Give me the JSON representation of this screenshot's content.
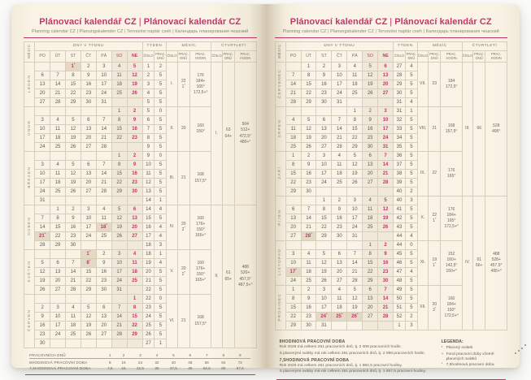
{
  "colors": {
    "accent": "#c5356a",
    "paper": "#f9f4e7",
    "grid_line": "#d8cdb8",
    "text": "#5f5950",
    "weekend_shade": "#f0e8d8",
    "holiday_shade": "#e3d9c5"
  },
  "header": {
    "title_left": "Plánovací kalendář CZ",
    "title_divider": "|",
    "title_right": "Plánovací kalendár CZ",
    "subtitle": "Planning calendar CZ | Planungskalender CZ | Tervezési naptár cseh | Календарь планирования чешский"
  },
  "table": {
    "col_month_rot": "MĚSÍC",
    "group_days": "DNY V TÝDNU",
    "day_names": [
      "PO",
      "ÚT",
      "ST",
      "ČT",
      "PÁ",
      "SO",
      "NE"
    ],
    "group_week": "TÝDEN",
    "group_month": "MĚSÍC",
    "group_quarter": "ČTVRTLETÍ",
    "sub_number": "ČÍSLO",
    "sub_work_days": "PRAC. DNŮ",
    "sub_work_hours": "PRAC. HODIN"
  },
  "quarters": [
    {
      "number": "I.",
      "work_days": [
        "63",
        "64+"
      ],
      "work_hours": [
        "504",
        "512+",
        "472,5°",
        "480+°"
      ]
    },
    {
      "number": "II.",
      "work_days": [
        "61",
        "65+"
      ],
      "work_hours": [
        "488",
        "520+",
        "457,5°",
        "487,5+°"
      ]
    },
    {
      "number": "III.",
      "work_days": [
        "66"
      ],
      "work_hours": [
        "528",
        "495°"
      ]
    },
    {
      "number": "IV.",
      "work_days": [
        "61",
        "66+"
      ],
      "work_hours": [
        "488",
        "528+",
        "457,5°",
        "495+°"
      ]
    }
  ],
  "left_months": [
    {
      "name": "LEDEN",
      "number": "I.",
      "quarter": 0,
      "work_days": [
        "22",
        "1*"
      ],
      "work_hours": [
        "176",
        "184+",
        "165°",
        "172,5+°"
      ],
      "weeks": [
        {
          "days": [
            "",
            "",
            "1*",
            "2",
            "3",
            "4",
            "5"
          ],
          "no": "1",
          "wd": "2"
        },
        {
          "days": [
            "6",
            "7",
            "8",
            "9",
            "10",
            "11",
            "12"
          ],
          "no": "2",
          "wd": "5"
        },
        {
          "days": [
            "13",
            "14",
            "15",
            "16",
            "17",
            "18",
            "19"
          ],
          "no": "3",
          "wd": "5"
        },
        {
          "days": [
            "20",
            "21",
            "22",
            "23",
            "24",
            "25",
            "26"
          ],
          "no": "4",
          "wd": "5"
        },
        {
          "days": [
            "27",
            "28",
            "29",
            "30",
            "31",
            "",
            ""
          ],
          "no": "5",
          "wd": "5"
        }
      ]
    },
    {
      "name": "ÚNOR",
      "number": "II.",
      "quarter": 0,
      "work_days": [
        "20"
      ],
      "work_hours": [
        "160",
        "150°"
      ],
      "weeks": [
        {
          "days": [
            "",
            "",
            "",
            "",
            "",
            "1",
            "2"
          ],
          "no": "5",
          "wd": "0"
        },
        {
          "days": [
            "3",
            "4",
            "5",
            "6",
            "7",
            "8",
            "9"
          ],
          "no": "6",
          "wd": "5"
        },
        {
          "days": [
            "10",
            "11",
            "12",
            "13",
            "14",
            "15",
            "16"
          ],
          "no": "7",
          "wd": "5"
        },
        {
          "days": [
            "17",
            "18",
            "19",
            "20",
            "21",
            "22",
            "23"
          ],
          "no": "8",
          "wd": "5"
        },
        {
          "days": [
            "24",
            "25",
            "26",
            "27",
            "28",
            "",
            ""
          ],
          "no": "9",
          "wd": "5"
        }
      ]
    },
    {
      "name": "BŘEZEN",
      "number": "III.",
      "quarter": 0,
      "work_days": [
        "21"
      ],
      "work_hours": [
        "168",
        "157,5°"
      ],
      "weeks": [
        {
          "days": [
            "",
            "",
            "",
            "",
            "",
            "1",
            "2"
          ],
          "no": "9",
          "wd": "0"
        },
        {
          "days": [
            "3",
            "4",
            "5",
            "6",
            "7",
            "8",
            "9"
          ],
          "no": "10",
          "wd": "5"
        },
        {
          "days": [
            "10",
            "11",
            "12",
            "13",
            "14",
            "15",
            "16"
          ],
          "no": "11",
          "wd": "5"
        },
        {
          "days": [
            "17",
            "18",
            "19",
            "20",
            "21",
            "22",
            "23"
          ],
          "no": "12",
          "wd": "5"
        },
        {
          "days": [
            "24",
            "25",
            "26",
            "27",
            "28",
            "29",
            "30"
          ],
          "no": "13",
          "wd": "5"
        },
        {
          "days": [
            "31",
            "",
            "",
            "",
            "",
            "",
            ""
          ],
          "no": "14",
          "wd": "1"
        }
      ]
    },
    {
      "name": "DUBEN",
      "number": "IV.",
      "quarter": 1,
      "work_days": [
        "20",
        "2*"
      ],
      "work_hours": [
        "160",
        "176+",
        "150°",
        "165+°"
      ],
      "weeks": [
        {
          "days": [
            "",
            "1",
            "2",
            "3",
            "4",
            "5",
            "6"
          ],
          "no": "14",
          "wd": "4"
        },
        {
          "days": [
            "7",
            "8",
            "9",
            "10",
            "11",
            "12",
            "13"
          ],
          "no": "15",
          "wd": "5"
        },
        {
          "days": [
            "14",
            "15",
            "16",
            "17",
            "18*",
            "19",
            "20"
          ],
          "no": "16",
          "wd": "4"
        },
        {
          "days": [
            "21*",
            "22",
            "23",
            "24",
            "25",
            "26",
            "27"
          ],
          "no": "17",
          "wd": "4"
        },
        {
          "days": [
            "28",
            "29",
            "30",
            "",
            "",
            "",
            ""
          ],
          "no": "18",
          "wd": "3"
        }
      ]
    },
    {
      "name": "KVĚTEN",
      "number": "V.",
      "quarter": 1,
      "work_days": [
        "20",
        "2*"
      ],
      "work_hours": [
        "160",
        "176+",
        "150°",
        "165+°"
      ],
      "weeks": [
        {
          "days": [
            "",
            "",
            "",
            "1*",
            "2",
            "3",
            "4"
          ],
          "no": "18",
          "wd": "1"
        },
        {
          "days": [
            "5",
            "6",
            "7",
            "8*",
            "9",
            "10",
            "11"
          ],
          "no": "19",
          "wd": "4"
        },
        {
          "days": [
            "12",
            "13",
            "14",
            "15",
            "16",
            "17",
            "18"
          ],
          "no": "20",
          "wd": "5"
        },
        {
          "days": [
            "19",
            "20",
            "21",
            "22",
            "23",
            "24",
            "25"
          ],
          "no": "21",
          "wd": "5"
        },
        {
          "days": [
            "26",
            "27",
            "28",
            "29",
            "30",
            "31",
            ""
          ],
          "no": "22",
          "wd": "5"
        }
      ]
    },
    {
      "name": "ČERVEN",
      "number": "VI.",
      "quarter": 1,
      "work_days": [
        "21"
      ],
      "work_hours": [
        "168",
        "157,5°"
      ],
      "weeks": [
        {
          "days": [
            "",
            "",
            "",
            "",
            "",
            "",
            "1"
          ],
          "no": "22",
          "wd": "0"
        },
        {
          "days": [
            "2",
            "3",
            "4",
            "5",
            "6",
            "7",
            "8"
          ],
          "no": "23",
          "wd": "5"
        },
        {
          "days": [
            "9",
            "10",
            "11",
            "12",
            "13",
            "14",
            "15"
          ],
          "no": "24",
          "wd": "5"
        },
        {
          "days": [
            "16",
            "17",
            "18",
            "19",
            "20",
            "21",
            "22"
          ],
          "no": "25",
          "wd": "5"
        },
        {
          "days": [
            "23",
            "24",
            "25",
            "26",
            "27",
            "28",
            "29"
          ],
          "no": "26",
          "wd": "5"
        },
        {
          "days": [
            "30",
            "",
            "",
            "",
            "",
            "",
            ""
          ],
          "no": "27",
          "wd": "1"
        }
      ]
    }
  ],
  "right_months": [
    {
      "name": "ČERVENEC",
      "number": "VII.",
      "quarter": 2,
      "work_days": [
        "23"
      ],
      "work_hours": [
        "184",
        "172,5°"
      ],
      "weeks": [
        {
          "days": [
            "",
            "1",
            "2",
            "3",
            "4",
            "5",
            "6"
          ],
          "no": "27",
          "wd": "4"
        },
        {
          "days": [
            "7",
            "8",
            "9",
            "10",
            "11",
            "12",
            "13"
          ],
          "no": "28",
          "wd": "5"
        },
        {
          "days": [
            "14",
            "15",
            "16",
            "17",
            "18",
            "19",
            "20"
          ],
          "no": "29",
          "wd": "5"
        },
        {
          "days": [
            "21",
            "22",
            "23",
            "24",
            "25",
            "26",
            "27"
          ],
          "no": "30",
          "wd": "5"
        },
        {
          "days": [
            "28",
            "29",
            "30",
            "31",
            "",
            "",
            ""
          ],
          "no": "31",
          "wd": "4"
        }
      ]
    },
    {
      "name": "SRPEN",
      "number": "VIII.",
      "quarter": 2,
      "work_days": [
        "21"
      ],
      "work_hours": [
        "168",
        "157,5°"
      ],
      "weeks": [
        {
          "days": [
            "",
            "",
            "",
            "",
            "1",
            "2",
            "3"
          ],
          "no": "31",
          "wd": "1"
        },
        {
          "days": [
            "4",
            "5",
            "6",
            "7",
            "8",
            "9",
            "10"
          ],
          "no": "32",
          "wd": "5"
        },
        {
          "days": [
            "11",
            "12",
            "13",
            "14",
            "15",
            "16",
            "17"
          ],
          "no": "33",
          "wd": "5"
        },
        {
          "days": [
            "18",
            "19",
            "20",
            "21",
            "22",
            "23",
            "24"
          ],
          "no": "34",
          "wd": "5"
        },
        {
          "days": [
            "25",
            "26",
            "27",
            "28",
            "29",
            "30",
            "31"
          ],
          "no": "35",
          "wd": "5"
        }
      ]
    },
    {
      "name": "ZÁŘÍ",
      "number": "IX.",
      "quarter": 2,
      "work_days": [
        "22"
      ],
      "work_hours": [
        "176",
        "165°"
      ],
      "weeks": [
        {
          "days": [
            "1",
            "2",
            "3",
            "4",
            "5",
            "6",
            "7"
          ],
          "no": "36",
          "wd": "5"
        },
        {
          "days": [
            "8",
            "9",
            "10",
            "11",
            "12",
            "13",
            "14"
          ],
          "no": "37",
          "wd": "5"
        },
        {
          "days": [
            "15",
            "16",
            "17",
            "18",
            "19",
            "20",
            "21"
          ],
          "no": "38",
          "wd": "5"
        },
        {
          "days": [
            "22",
            "23",
            "24",
            "25",
            "26",
            "27",
            "28"
          ],
          "no": "39",
          "wd": "5"
        },
        {
          "days": [
            "29",
            "30",
            "",
            "",
            "",
            "",
            ""
          ],
          "no": "40",
          "wd": "2"
        }
      ]
    },
    {
      "name": "ŘÍJEN",
      "number": "X.",
      "quarter": 3,
      "work_days": [
        "22",
        "1*"
      ],
      "work_hours": [
        "176",
        "184+",
        "165°",
        "172,5+°"
      ],
      "weeks": [
        {
          "days": [
            "",
            "",
            "1",
            "2",
            "3",
            "4",
            "5"
          ],
          "no": "40",
          "wd": "3"
        },
        {
          "days": [
            "6",
            "7",
            "8",
            "9",
            "10",
            "11",
            "12"
          ],
          "no": "41",
          "wd": "5"
        },
        {
          "days": [
            "13",
            "14",
            "15",
            "16",
            "17",
            "18",
            "19"
          ],
          "no": "42",
          "wd": "5"
        },
        {
          "days": [
            "20",
            "21",
            "22",
            "23",
            "24",
            "25",
            "26"
          ],
          "no": "43",
          "wd": "5"
        },
        {
          "days": [
            "27",
            "28*",
            "29",
            "30",
            "31",
            "",
            ""
          ],
          "no": "44",
          "wd": "4"
        }
      ]
    },
    {
      "name": "LISTOPAD",
      "number": "XI.",
      "quarter": 3,
      "work_days": [
        "19",
        "1*"
      ],
      "work_hours": [
        "152",
        "160+",
        "142,5°",
        "150+°"
      ],
      "weeks": [
        {
          "days": [
            "",
            "",
            "",
            "",
            "",
            "1",
            "2"
          ],
          "no": "44",
          "wd": "0"
        },
        {
          "days": [
            "3",
            "4",
            "5",
            "6",
            "7",
            "8",
            "9"
          ],
          "no": "45",
          "wd": "5"
        },
        {
          "days": [
            "10",
            "11",
            "12",
            "13",
            "14",
            "15",
            "16"
          ],
          "no": "46",
          "wd": "5"
        },
        {
          "days": [
            "17*",
            "18",
            "19",
            "20",
            "21",
            "22",
            "23"
          ],
          "no": "47",
          "wd": "4"
        },
        {
          "days": [
            "24",
            "25",
            "26",
            "27",
            "28",
            "29",
            "30"
          ],
          "no": "48",
          "wd": "5"
        }
      ]
    },
    {
      "name": "PROSINEC",
      "number": "XII.",
      "quarter": 3,
      "work_days": [
        "20",
        "3*"
      ],
      "work_hours": [
        "160",
        "184+",
        "150°",
        "172,5+°"
      ],
      "weeks": [
        {
          "days": [
            "1",
            "2",
            "3",
            "4",
            "5",
            "6",
            "7"
          ],
          "no": "49",
          "wd": "5"
        },
        {
          "days": [
            "8",
            "9",
            "10",
            "11",
            "12",
            "13",
            "14"
          ],
          "no": "50",
          "wd": "5"
        },
        {
          "days": [
            "15",
            "16",
            "17",
            "18",
            "19",
            "20",
            "21"
          ],
          "no": "51",
          "wd": "5"
        },
        {
          "days": [
            "22",
            "23",
            "24*",
            "25*",
            "26*",
            "27",
            "28"
          ],
          "no": "52",
          "wd": "2"
        },
        {
          "days": [
            "29",
            "30",
            "31",
            "",
            "",
            "",
            ""
          ],
          "no": "1",
          "wd": "3"
        }
      ]
    }
  ],
  "left_footer": {
    "rows": [
      {
        "label": "PRACOVNÍCH DNŮ",
        "values": [
          "1",
          "2",
          "3",
          "4",
          "5",
          "6",
          "7",
          "8",
          "9"
        ]
      },
      {
        "label": "8HODINOVÁ PRACOVNÍ DOBA",
        "values": [
          "8",
          "16",
          "24",
          "32",
          "40",
          "48",
          "56",
          "64",
          "72"
        ]
      },
      {
        "label": "7,5HODINOVÁ PRACOVNÍ DOBA",
        "values": [
          "7,5",
          "15",
          "22,5",
          "30",
          "37,5",
          "45",
          "52,5",
          "60",
          "67,5"
        ]
      }
    ]
  },
  "right_footer": {
    "sections": [
      {
        "heading": "8HODINOVÁ PRACOVNÍ DOBA",
        "lines": [
          "Rok 2025 má celkem 251 pracovních dnů, tj. 2 008 pracovních hodin.",
          "S placenými svátky má rok celkem 261 pracovních dnů, tj. 2 088 pracovních hodin."
        ]
      },
      {
        "heading": "7,5HODINOVÁ PRACOVNÍ DOBA",
        "lines": [
          "Rok 2025 má celkem 251 pracovních dnů, tj. 1 882,5 pracovní hodiny.",
          "S placenými svátky má rok celkem 261 pracovních dnů, tj. 1 957,5 pracovní hodiny."
        ]
      }
    ],
    "legend": {
      "heading": "LEGENDA:",
      "items": [
        {
          "symbol": "*",
          "text": "Placený svátek"
        },
        {
          "symbol": "+",
          "text": "Fond pracovní doby včetně placených svátků"
        },
        {
          "symbol": "°",
          "text": "7,5hodinová pracovní doba"
        }
      ]
    }
  }
}
